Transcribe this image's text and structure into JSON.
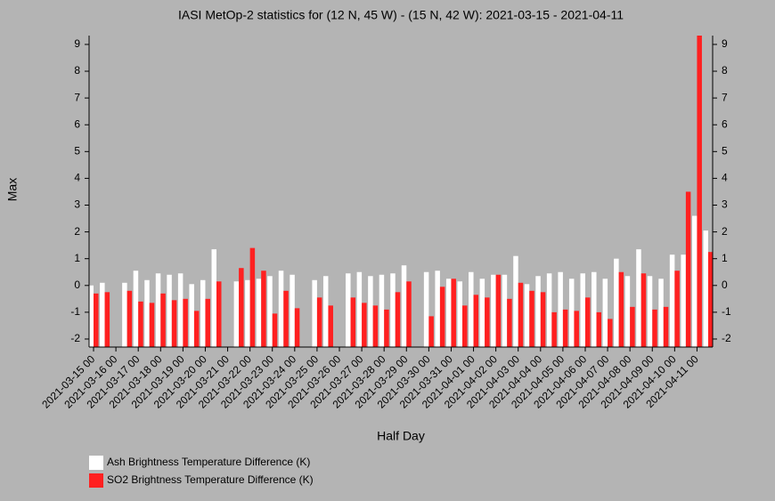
{
  "chart_data": {
    "type": "bar",
    "title": "IASI MetOp-2 statistics for (12 N, 45 W) - (15 N, 42 W): 2021-03-15 - 2021-04-11",
    "xlabel": "Half Day",
    "ylabel": "Max",
    "categories": [
      "2021-03-15 00",
      null,
      "2021-03-16 00",
      null,
      "2021-03-17 00",
      null,
      "2021-03-18 00",
      null,
      "2021-03-19 00",
      null,
      "2021-03-20 00",
      null,
      "2021-03-21 00",
      null,
      "2021-03-22 00",
      null,
      "2021-03-23 00",
      null,
      "2021-03-24 00",
      null,
      "2021-03-25 00",
      null,
      "2021-03-26 00",
      null,
      "2021-03-27 00",
      null,
      "2021-03-28 00",
      null,
      "2021-03-29 00",
      null,
      "2021-03-30 00",
      null,
      "2021-03-31 00",
      null,
      "2021-04-01 00",
      null,
      "2021-04-02 00",
      null,
      "2021-04-03 00",
      null,
      "2021-04-04 00",
      null,
      "2021-04-05 00",
      null,
      "2021-04-06 00",
      null,
      "2021-04-07 00",
      null,
      "2021-04-08 00",
      null,
      "2021-04-09 00",
      null,
      "2021-04-10 00",
      null,
      "2021-04-11 00",
      null
    ],
    "series": [
      {
        "name": "Ash Brightness Temperature Difference (K)",
        "color": "#ffffff",
        "values": [
          0.0,
          0.1,
          null,
          0.1,
          0.55,
          0.2,
          0.45,
          0.4,
          0.45,
          0.05,
          0.2,
          1.35,
          null,
          0.15,
          0.2,
          0.25,
          0.35,
          0.55,
          0.4,
          null,
          0.2,
          0.35,
          null,
          0.45,
          0.5,
          0.35,
          0.4,
          0.45,
          0.75,
          null,
          0.5,
          0.55,
          0.25,
          0.15,
          0.5,
          0.25,
          0.4,
          0.4,
          1.1,
          0.05,
          0.35,
          0.45,
          0.5,
          0.25,
          0.45,
          0.5,
          0.25,
          1.0,
          0.35,
          1.35,
          0.35,
          0.25,
          1.15,
          1.15,
          2.6,
          2.05
        ]
      },
      {
        "name": "SO2 Brightness Temperature Difference (K)",
        "color": "#ff2020",
        "values": [
          -0.3,
          -0.25,
          null,
          -0.2,
          -0.6,
          -0.65,
          -0.3,
          -0.55,
          -0.5,
          -0.95,
          -0.5,
          0.15,
          null,
          0.65,
          1.4,
          0.55,
          -1.05,
          -0.2,
          -0.85,
          null,
          -0.45,
          -0.75,
          null,
          -0.45,
          -0.65,
          -0.75,
          -0.9,
          -0.25,
          0.15,
          null,
          -1.15,
          -0.05,
          0.25,
          -0.75,
          -0.35,
          -0.45,
          0.4,
          -0.5,
          0.1,
          -0.2,
          -0.25,
          -1.0,
          -0.9,
          -0.95,
          -0.45,
          -1.0,
          -1.25,
          0.5,
          -0.8,
          0.45,
          -0.9,
          -0.8,
          0.55,
          3.5,
          9.4,
          1.25
        ]
      }
    ],
    "ylim": [
      -2.3,
      9.33
    ],
    "yticks": [
      -2,
      -1,
      0,
      1,
      2,
      3,
      4,
      5,
      6,
      7,
      8,
      9
    ]
  }
}
